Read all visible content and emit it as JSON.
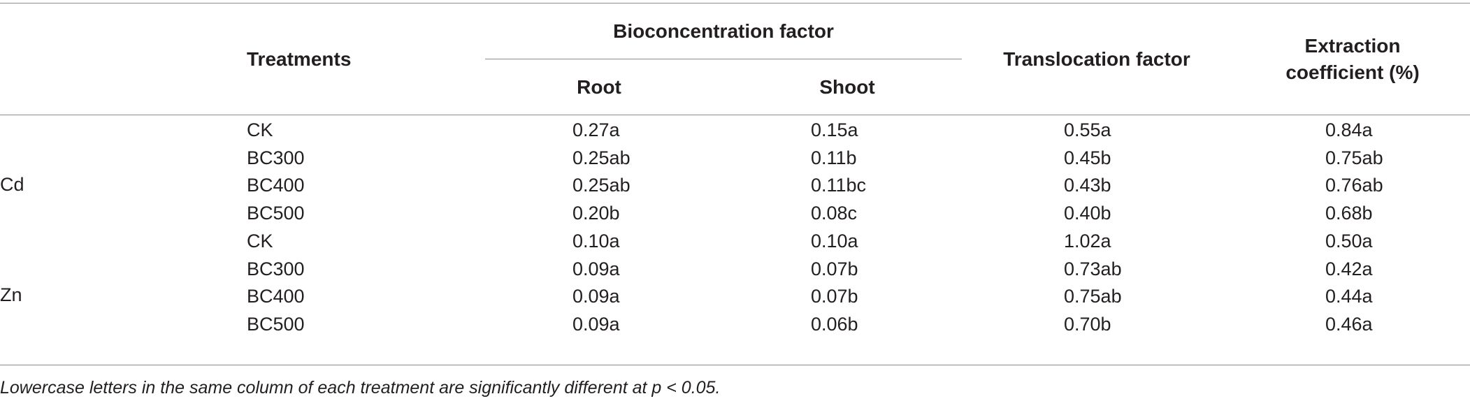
{
  "table": {
    "headers": {
      "treatments": "Treatments",
      "bioconcentration": "Bioconcentration factor",
      "root": "Root",
      "shoot": "Shoot",
      "translocation": "Translocation factor",
      "extraction_line1": "Extraction",
      "extraction_line2": "coefficient (%)"
    },
    "groups": [
      {
        "label": "Cd",
        "rows": [
          {
            "treatment": "CK",
            "root": "0.27a",
            "shoot": "0.15a",
            "translocation": "0.55a",
            "extraction": "0.84a"
          },
          {
            "treatment": "BC300",
            "root": "0.25ab",
            "shoot": "0.11b",
            "translocation": "0.45b",
            "extraction": "0.75ab"
          },
          {
            "treatment": "BC400",
            "root": "0.25ab",
            "shoot": "0.11bc",
            "translocation": "0.43b",
            "extraction": "0.76ab"
          },
          {
            "treatment": "BC500",
            "root": "0.20b",
            "shoot": "0.08c",
            "translocation": "0.40b",
            "extraction": "0.68b"
          }
        ]
      },
      {
        "label": "Zn",
        "rows": [
          {
            "treatment": "CK",
            "root": "0.10a",
            "shoot": "0.10a",
            "translocation": "1.02a",
            "extraction": "0.50a"
          },
          {
            "treatment": "BC300",
            "root": "0.09a",
            "shoot": "0.07b",
            "translocation": "0.73ab",
            "extraction": "0.42a"
          },
          {
            "treatment": "BC400",
            "root": "0.09a",
            "shoot": "0.07b",
            "translocation": "0.75ab",
            "extraction": "0.44a"
          },
          {
            "treatment": "BC500",
            "root": "0.09a",
            "shoot": "0.06b",
            "translocation": "0.70b",
            "extraction": "0.46a"
          }
        ]
      }
    ],
    "footnote": "Lowercase letters in the same column of each treatment are significantly different at p < 0.05."
  }
}
